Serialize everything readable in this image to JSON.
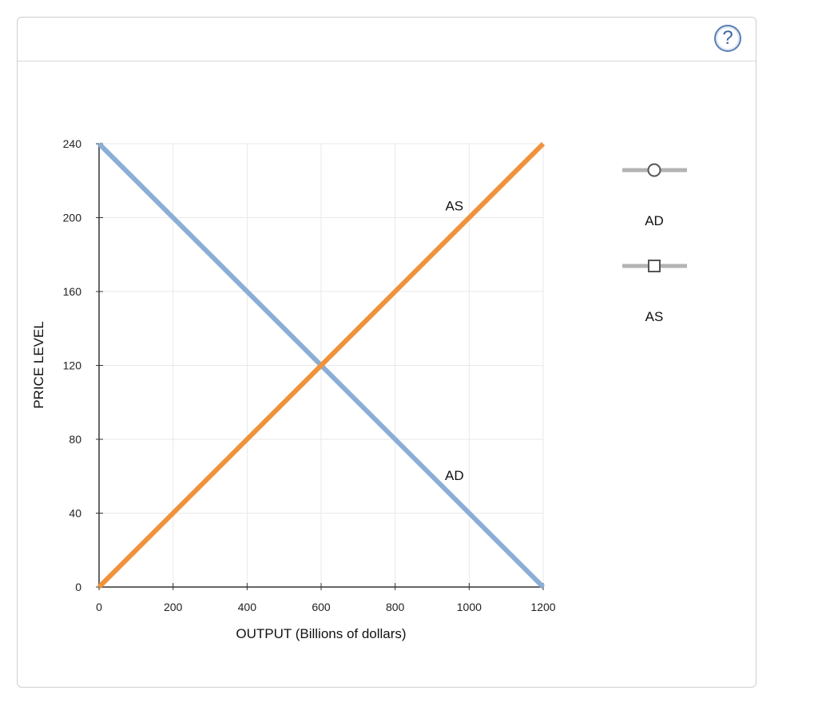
{
  "help": {
    "label": "?"
  },
  "chart_data": {
    "type": "line",
    "xlabel": "OUTPUT (Billions of dollars)",
    "ylabel": "PRICE LEVEL",
    "xlim": [
      0,
      1200
    ],
    "ylim": [
      0,
      240
    ],
    "x_ticks": [
      0,
      200,
      400,
      600,
      800,
      1000,
      1200
    ],
    "y_ticks": [
      0,
      40,
      80,
      120,
      160,
      200,
      240
    ],
    "grid": true,
    "series": [
      {
        "name": "AD",
        "color": "#8aaed6",
        "x": [
          0,
          1200
        ],
        "y": [
          240,
          0
        ]
      },
      {
        "name": "AS",
        "color": "#f0923a",
        "x": [
          0,
          1200
        ],
        "y": [
          0,
          240
        ]
      }
    ],
    "annotations": [
      {
        "text": "AS",
        "x": 960,
        "y": 204
      },
      {
        "text": "AD",
        "x": 960,
        "y": 58
      }
    ],
    "legend": {
      "placement": "right",
      "items": [
        {
          "label": "AD",
          "marker": "circle"
        },
        {
          "label": "AS",
          "marker": "square"
        }
      ]
    }
  }
}
